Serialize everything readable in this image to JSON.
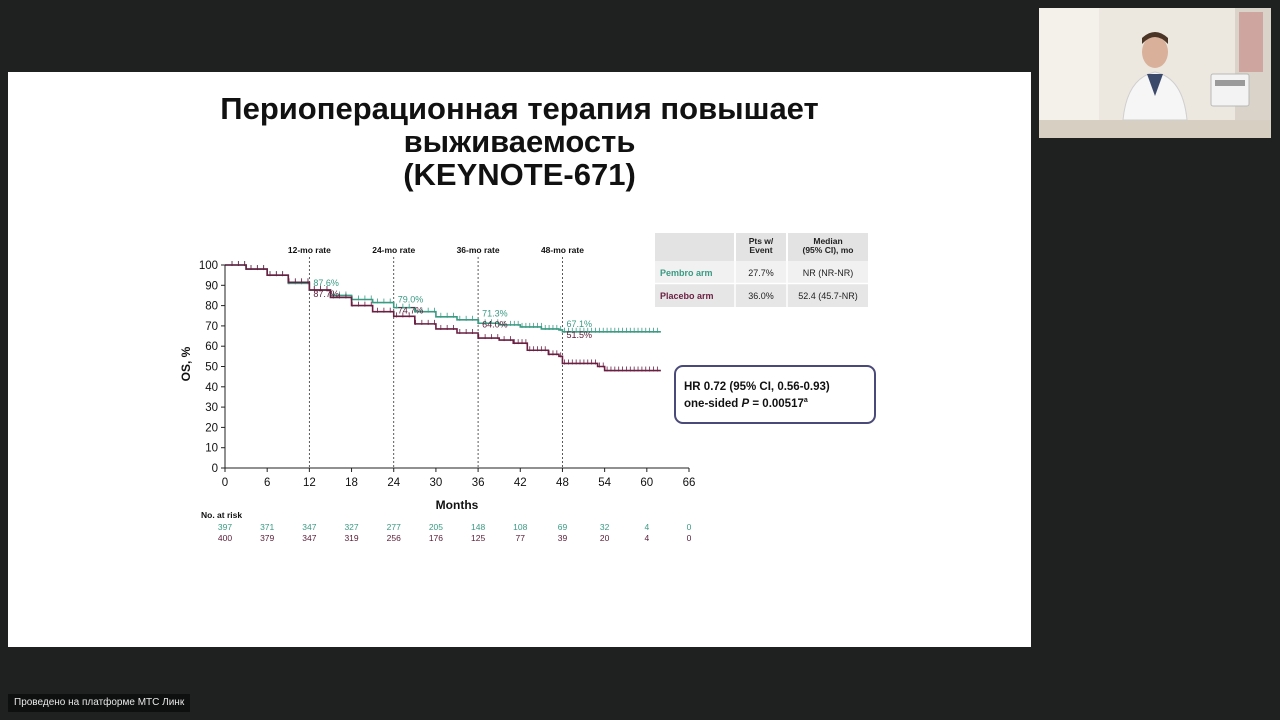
{
  "slide": {
    "title_lines": [
      "Периоперационная терапия повышает",
      "выживаемость",
      "(KEYNOTE-671)"
    ]
  },
  "chart_data": {
    "type": "line",
    "ylabel": "OS, %",
    "xlabel": "Months",
    "x_ticks": [
      0,
      6,
      12,
      18,
      24,
      30,
      36,
      42,
      48,
      54,
      60,
      66
    ],
    "y_ticks": [
      0,
      10,
      20,
      30,
      40,
      50,
      60,
      70,
      80,
      90,
      100
    ],
    "xlim": [
      0,
      66
    ],
    "ylim": [
      0,
      100
    ],
    "rate_markers": [
      {
        "x": 12,
        "label": "12-mo rate",
        "pembro": "87.6%",
        "placebo": "87.7%"
      },
      {
        "x": 24,
        "label": "24-mo rate",
        "pembro": "79.0%",
        "placebo": "74.7%"
      },
      {
        "x": 36,
        "label": "36-mo rate",
        "pembro": "71.3%",
        "placebo": "64.0%"
      },
      {
        "x": 48,
        "label": "48-mo rate",
        "pembro": "67.1%",
        "placebo": "51.5%"
      }
    ],
    "series": [
      {
        "name": "Pembro arm",
        "color": "#3a9a82",
        "points": [
          [
            0,
            100
          ],
          [
            3,
            98
          ],
          [
            6,
            95
          ],
          [
            9,
            91
          ],
          [
            12,
            87.6
          ],
          [
            15,
            85
          ],
          [
            18,
            83
          ],
          [
            21,
            81.5
          ],
          [
            24,
            79
          ],
          [
            27,
            77
          ],
          [
            30,
            74.5
          ],
          [
            33,
            73
          ],
          [
            36,
            71.3
          ],
          [
            39,
            70.5
          ],
          [
            42,
            69.5
          ],
          [
            45,
            68.5
          ],
          [
            47.5,
            68
          ],
          [
            48,
            67.1
          ],
          [
            52,
            67.1
          ],
          [
            62,
            67.1
          ]
        ]
      },
      {
        "name": "Placebo arm",
        "color": "#6a1f42",
        "points": [
          [
            0,
            100
          ],
          [
            3,
            98
          ],
          [
            6,
            95
          ],
          [
            9,
            91.5
          ],
          [
            12,
            87.7
          ],
          [
            15,
            84
          ],
          [
            18,
            80
          ],
          [
            21,
            77
          ],
          [
            24,
            74.7
          ],
          [
            27,
            71
          ],
          [
            30,
            68.5
          ],
          [
            33,
            66.5
          ],
          [
            36,
            64
          ],
          [
            39,
            63
          ],
          [
            41,
            61.5
          ],
          [
            43,
            58
          ],
          [
            46,
            56
          ],
          [
            47.5,
            55
          ],
          [
            48,
            51.5
          ],
          [
            51,
            51.5
          ],
          [
            53,
            50
          ],
          [
            54,
            48
          ],
          [
            62,
            48
          ]
        ]
      }
    ],
    "risk_table": {
      "title": "No. at risk",
      "x": [
        0,
        6,
        12,
        18,
        24,
        30,
        36,
        42,
        48,
        54,
        60,
        66
      ],
      "pembro": [
        "397",
        "371",
        "347",
        "327",
        "277",
        "205",
        "148",
        "108",
        "69",
        "32",
        "4",
        "0"
      ],
      "placebo": [
        "400",
        "379",
        "347",
        "319",
        "256",
        "176",
        "125",
        "77",
        "39",
        "20",
        "4",
        "0"
      ]
    },
    "summary_table": {
      "headers": [
        "",
        "Pts w/ Event",
        "Median (95% CI), mo"
      ],
      "rows": [
        {
          "arm": "Pembro arm",
          "event": "27.7%",
          "median": "NR (NR-NR)"
        },
        {
          "arm": "Placebo arm",
          "event": "36.0%",
          "median": "52.4 (45.7-NR)"
        }
      ]
    },
    "hr_box": {
      "line1": "HR 0.72 (95% CI, 0.56-0.93)",
      "line2_prefix": "one-sided ",
      "line2_p": "P",
      "line2_suffix": " = 0.00517",
      "line2_sup": "a"
    }
  },
  "watermark": "Проведено на платформе МТС Линк"
}
